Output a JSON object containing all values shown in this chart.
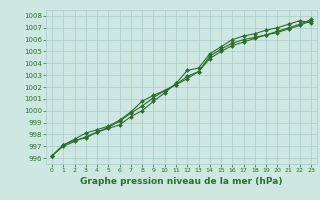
{
  "background_color": "#cce8e0",
  "grid_color": "#aacccc",
  "line_color": "#2d6e2d",
  "marker_color": "#2d6e2d",
  "text_color": "#2d6e2d",
  "xlabel": "Graphe pression niveau de la mer (hPa)",
  "xlabel_fontsize": 6.5,
  "xlim": [
    -0.5,
    23.5
  ],
  "ylim": [
    995.5,
    1008.5
  ],
  "yticks": [
    996,
    997,
    998,
    999,
    1000,
    1001,
    1002,
    1003,
    1004,
    1005,
    1006,
    1007,
    1008
  ],
  "xticks": [
    0,
    1,
    2,
    3,
    4,
    5,
    6,
    7,
    8,
    9,
    10,
    11,
    12,
    13,
    14,
    15,
    16,
    17,
    18,
    19,
    20,
    21,
    22,
    23
  ],
  "series": [
    [
      996.2,
      997.1,
      997.5,
      997.7,
      998.2,
      998.5,
      998.8,
      999.5,
      1000.0,
      1000.8,
      1001.5,
      1002.3,
      1003.4,
      1003.6,
      1004.8,
      1005.4,
      1006.0,
      1006.3,
      1006.5,
      1006.8,
      1007.0,
      1007.3,
      1007.6,
      1007.4
    ],
    [
      996.2,
      997.1,
      997.6,
      998.1,
      998.4,
      998.7,
      999.2,
      999.9,
      1000.8,
      1001.3,
      1001.7,
      1002.2,
      1002.9,
      1003.3,
      1004.6,
      1005.2,
      1005.7,
      1006.0,
      1006.2,
      1006.4,
      1006.6,
      1006.9,
      1007.2,
      1007.6
    ],
    [
      996.2,
      997.0,
      997.4,
      997.8,
      998.2,
      998.6,
      999.1,
      999.8,
      1000.4,
      1001.1,
      1001.7,
      1002.2,
      1002.7,
      1003.3,
      1004.4,
      1005.0,
      1005.5,
      1005.8,
      1006.1,
      1006.4,
      1006.7,
      1007.0,
      1007.3,
      1007.7
    ]
  ],
  "tick_fontsize": 5.0,
  "xtick_fontsize": 4.5,
  "marker": "D",
  "marker_size": 2.0,
  "linewidth": 0.8
}
